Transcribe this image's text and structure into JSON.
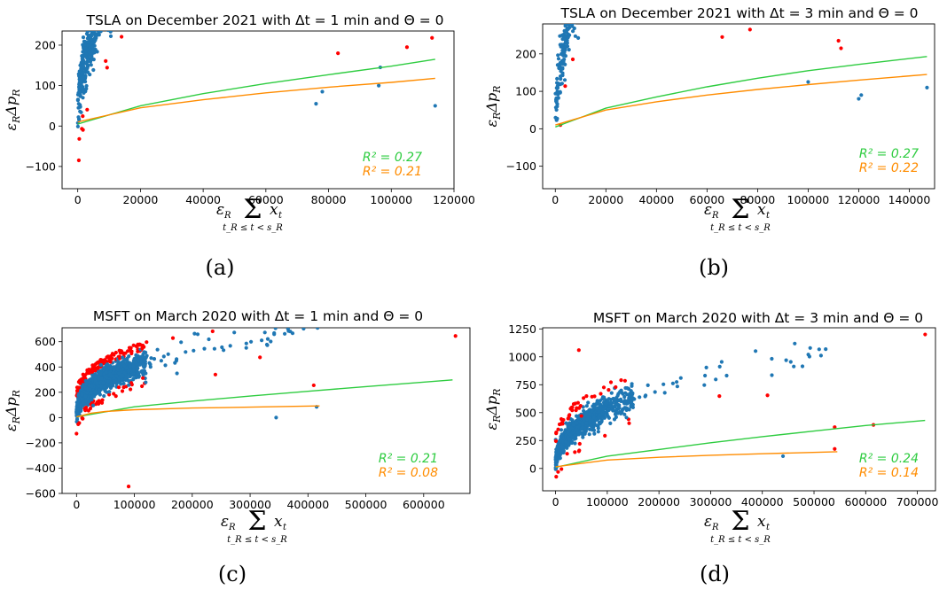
{
  "colors": {
    "points": "#1f77b4",
    "outliers": "#ff0000",
    "fit_green": "#2ecc40",
    "fit_orange": "#ff8c00"
  },
  "y_label": "ε_RΔp_R",
  "x_label": {
    "prefix": "ε",
    "prefix_sub": "R",
    "sum": "Σ",
    "sum_sub": "t_R ≤ t < s_R",
    "term": "x",
    "term_sub": "t"
  },
  "chart_data": [
    {
      "type": "scatter",
      "title": "TSLA on December 2021 with Δt = 1 min and Θ = 0",
      "caption": "(a)",
      "xlim": [
        -5000,
        120000
      ],
      "ylim": [
        -155,
        235
      ],
      "xticks": [
        0,
        20000,
        40000,
        60000,
        80000,
        100000,
        120000
      ],
      "yticks": [
        -100,
        0,
        100,
        200
      ],
      "r2": [
        "R² = 0.27",
        "R² = 0.21"
      ],
      "fit_lines": [
        {
          "name": "R² = 0.27",
          "points": [
            [
              0,
              5
            ],
            [
              20000,
              50
            ],
            [
              40000,
              80
            ],
            [
              60000,
              105
            ],
            [
              80000,
              127
            ],
            [
              100000,
              148
            ],
            [
              114000,
              165
            ]
          ]
        },
        {
          "name": "R² = 0.21",
          "points": [
            [
              0,
              10
            ],
            [
              20000,
              45
            ],
            [
              40000,
              65
            ],
            [
              60000,
              82
            ],
            [
              80000,
              96
            ],
            [
              100000,
              108
            ],
            [
              114000,
              118
            ]
          ]
        }
      ],
      "gen": {
        "n": 1100,
        "seed": 11,
        "xcore": 45000,
        "xscale": 14000,
        "xmax": 115000,
        "a": 3.2,
        "b": 0.5,
        "noise": 55,
        "outlier_frac": 0.06,
        "outlier_shift": 110
      },
      "notable_points": [
        [
          114000,
          50
        ],
        [
          96000,
          100
        ],
        [
          105000,
          195
        ],
        [
          113000,
          218
        ],
        [
          96500,
          145
        ],
        [
          83000,
          180
        ],
        [
          76000,
          55
        ],
        [
          78000,
          85
        ]
      ]
    },
    {
      "type": "scatter",
      "title": "TSLA on December 2021 with Δt = 3 min and Θ = 0",
      "caption": "(b)",
      "xlim": [
        -5000,
        150000
      ],
      "ylim": [
        -160,
        280
      ],
      "xticks": [
        0,
        20000,
        40000,
        60000,
        80000,
        100000,
        120000,
        140000
      ],
      "yticks": [
        -100,
        0,
        100,
        200
      ],
      "r2": [
        "R² = 0.27",
        "R² = 0.22"
      ],
      "fit_lines": [
        {
          "name": "R² = 0.27",
          "points": [
            [
              0,
              5
            ],
            [
              20000,
              55
            ],
            [
              40000,
              85
            ],
            [
              60000,
              112
            ],
            [
              80000,
              135
            ],
            [
              100000,
              155
            ],
            [
              120000,
              172
            ],
            [
              147000,
              193
            ]
          ]
        },
        {
          "name": "R² = 0.22",
          "points": [
            [
              0,
              10
            ],
            [
              20000,
              50
            ],
            [
              40000,
              72
            ],
            [
              60000,
              90
            ],
            [
              80000,
              105
            ],
            [
              100000,
              118
            ],
            [
              120000,
              130
            ],
            [
              147000,
              145
            ]
          ]
        }
      ],
      "gen": {
        "n": 650,
        "seed": 23,
        "xcore": 55000,
        "xscale": 16000,
        "xmax": 147000,
        "a": 3.6,
        "b": 0.5,
        "noise": 55,
        "outlier_frac": 0.05,
        "outlier_shift": 110
      },
      "notable_points": [
        [
          147000,
          110
        ],
        [
          120000,
          80
        ],
        [
          121000,
          90
        ],
        [
          112000,
          235
        ],
        [
          113000,
          215
        ],
        [
          77000,
          265
        ],
        [
          66000,
          245
        ],
        [
          100000,
          125
        ]
      ]
    },
    {
      "type": "scatter",
      "title": "MSFT on March 2020 with Δt = 1 min and Θ = 0",
      "caption": "(c)",
      "xlim": [
        -25000,
        680000
      ],
      "ylim": [
        -600,
        710
      ],
      "xticks": [
        0,
        100000,
        200000,
        300000,
        400000,
        500000,
        600000
      ],
      "yticks": [
        -600,
        -400,
        -200,
        0,
        200,
        400,
        600
      ],
      "r2": [
        "R² = 0.21",
        "R² = 0.08"
      ],
      "fit_lines": [
        {
          "name": "R² = 0.21",
          "points": [
            [
              0,
              5
            ],
            [
              100000,
              85
            ],
            [
              200000,
              130
            ],
            [
              300000,
              170
            ],
            [
              400000,
              208
            ],
            [
              500000,
              245
            ],
            [
              650000,
              298
            ]
          ]
        },
        {
          "name": "R² = 0.08",
          "points": [
            [
              0,
              5
            ],
            [
              25000,
              35
            ],
            [
              50000,
              48
            ],
            [
              100000,
              62
            ],
            [
              200000,
              75
            ],
            [
              300000,
              82
            ],
            [
              420000,
              92
            ]
          ]
        }
      ],
      "gen": {
        "n": 1600,
        "seed": 37,
        "xcore": 120000,
        "xscale": 40000,
        "xmax": 420000,
        "a": 4.0,
        "b": 0.4,
        "noise": 60,
        "outlier_frac": 0.09,
        "outlier_shift": 110
      },
      "notable_points": [
        [
          655000,
          645
        ],
        [
          410000,
          255
        ],
        [
          415000,
          85
        ],
        [
          345000,
          0
        ],
        [
          90000,
          -545
        ],
        [
          240000,
          340
        ]
      ]
    },
    {
      "type": "scatter",
      "title": "MSFT on March 2020 with Δt = 3 min and Θ = 0",
      "caption": "(d)",
      "xlim": [
        -25000,
        735000
      ],
      "ylim": [
        -200,
        1260
      ],
      "xticks": [
        0,
        100000,
        200000,
        300000,
        400000,
        500000,
        600000,
        700000
      ],
      "yticks": [
        0,
        250,
        500,
        750,
        1000,
        1250
      ],
      "r2": [
        "R² = 0.24",
        "R² = 0.14"
      ],
      "fit_lines": [
        {
          "name": "R² = 0.24",
          "points": [
            [
              0,
              10
            ],
            [
              100000,
              110
            ],
            [
              200000,
              170
            ],
            [
              300000,
              230
            ],
            [
              400000,
              285
            ],
            [
              500000,
              335
            ],
            [
              600000,
              385
            ],
            [
              715000,
              430
            ]
          ]
        },
        {
          "name": "R² = 0.14",
          "points": [
            [
              0,
              15
            ],
            [
              100000,
              75
            ],
            [
              200000,
              100
            ],
            [
              300000,
              118
            ],
            [
              400000,
              132
            ],
            [
              545000,
              150
            ]
          ]
        }
      ],
      "gen": {
        "n": 950,
        "seed": 51,
        "xcore": 150000,
        "xscale": 50000,
        "xmax": 545000,
        "a": 4.2,
        "b": 0.42,
        "noise": 70,
        "outlier_frac": 0.06,
        "outlier_shift": 150
      },
      "notable_points": [
        [
          715000,
          1200
        ],
        [
          45000,
          1060
        ],
        [
          410000,
          655
        ],
        [
          615000,
          390
        ],
        [
          540000,
          370
        ],
        [
          540000,
          175
        ],
        [
          440000,
          110
        ],
        [
          50000,
          470
        ]
      ]
    }
  ]
}
